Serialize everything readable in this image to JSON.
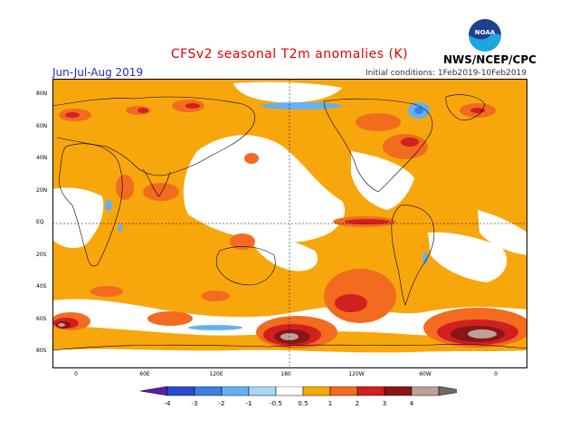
{
  "header": {
    "title": "CFSv2 seasonal T2m anomalies (K)",
    "season": "Jun-Jul-Aug 2019",
    "initial_conditions": "Initial conditions: 1Feb2019-10Feb2019",
    "agency": "NWS/NCEP/CPC",
    "logo_text": "NOAA"
  },
  "map": {
    "lat_labels": [
      "80N",
      "60N",
      "40N",
      "20N",
      "EQ",
      "20S",
      "40S",
      "60S",
      "80S"
    ],
    "lon_labels": [
      "0",
      "60E",
      "120E",
      "180",
      "120W",
      "60W",
      "0"
    ]
  },
  "colorbar": {
    "labels": [
      "-4",
      "-3",
      "-2",
      "-1",
      "-0.5",
      "0.5",
      "1",
      "2",
      "3",
      "4"
    ],
    "colors": [
      "#5a1fa8",
      "#2a4bd1",
      "#3e7fe0",
      "#64b0f0",
      "#a8d6f5",
      "#ffffff",
      "#f7a70c",
      "#f26b1f",
      "#d0201f",
      "#8a1515",
      "#bfa098",
      "#7a6560"
    ]
  },
  "colors": {
    "title": "#e00000",
    "season": "#2030c0",
    "anomaly_low": "#f7a70c",
    "anomaly_mid": "#f26b1f",
    "anomaly_high": "#d0201f",
    "anomaly_extreme": "#8a1515",
    "anomaly_max": "#bfa098",
    "anomaly_cold": "#64b0f0"
  }
}
